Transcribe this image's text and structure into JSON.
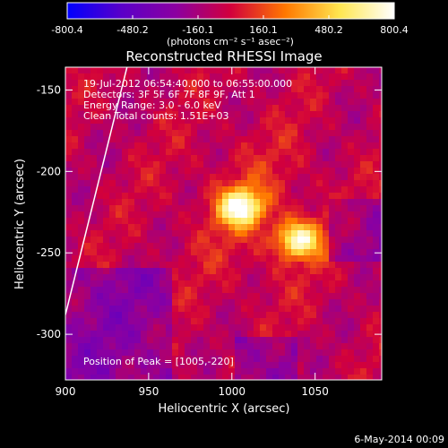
{
  "chart_data": {
    "type": "heatmap",
    "title": "Reconstructed RHESSI Image",
    "xlabel": "Heliocentric X (arcsec)",
    "ylabel": "Heliocentric Y (arcsec)",
    "xlim": [
      900,
      1090
    ],
    "ylim": [
      -328,
      -136
    ],
    "x_ticks": [
      900,
      950,
      1000,
      1050
    ],
    "y_ticks": [
      -150,
      -200,
      -250,
      -300
    ],
    "grid": false,
    "colorbar": {
      "range": [
        -800.4,
        800.4
      ],
      "ticks": [
        "-800.4",
        "-480.2",
        "-160.1",
        "160.1",
        "480.2",
        "800.4"
      ],
      "unit_label": "(photons cm⁻² s⁻¹ asec⁻²)",
      "colors": [
        "#0000ff",
        "#5a00c8",
        "#8c00a0",
        "#d2003c",
        "#ff7800",
        "#ffe650",
        "#ffffff"
      ]
    },
    "annotations": [
      "19-Jul-2012 06:54:40.000 to 06:55:00.000",
      "Detectors: 3F 5F 6F 7F 8F 9F, Att 1",
      "Energy Range: 3.0 - 6.0 keV",
      "Clean    Total counts: 1.51E+03"
    ],
    "peak_label": "Position of Peak = [1005,-220]",
    "peak": [
      1005,
      -220
    ],
    "sources": [
      {
        "x": 1005,
        "y": -222,
        "rel_intensity": 1.0
      },
      {
        "x": 1040,
        "y": -242,
        "rel_intensity": 0.95
      }
    ],
    "limb_line": [
      [
        900,
        -288
      ],
      [
        937,
        -136
      ]
    ],
    "date_stamp": "6-May-2014 00:09"
  }
}
